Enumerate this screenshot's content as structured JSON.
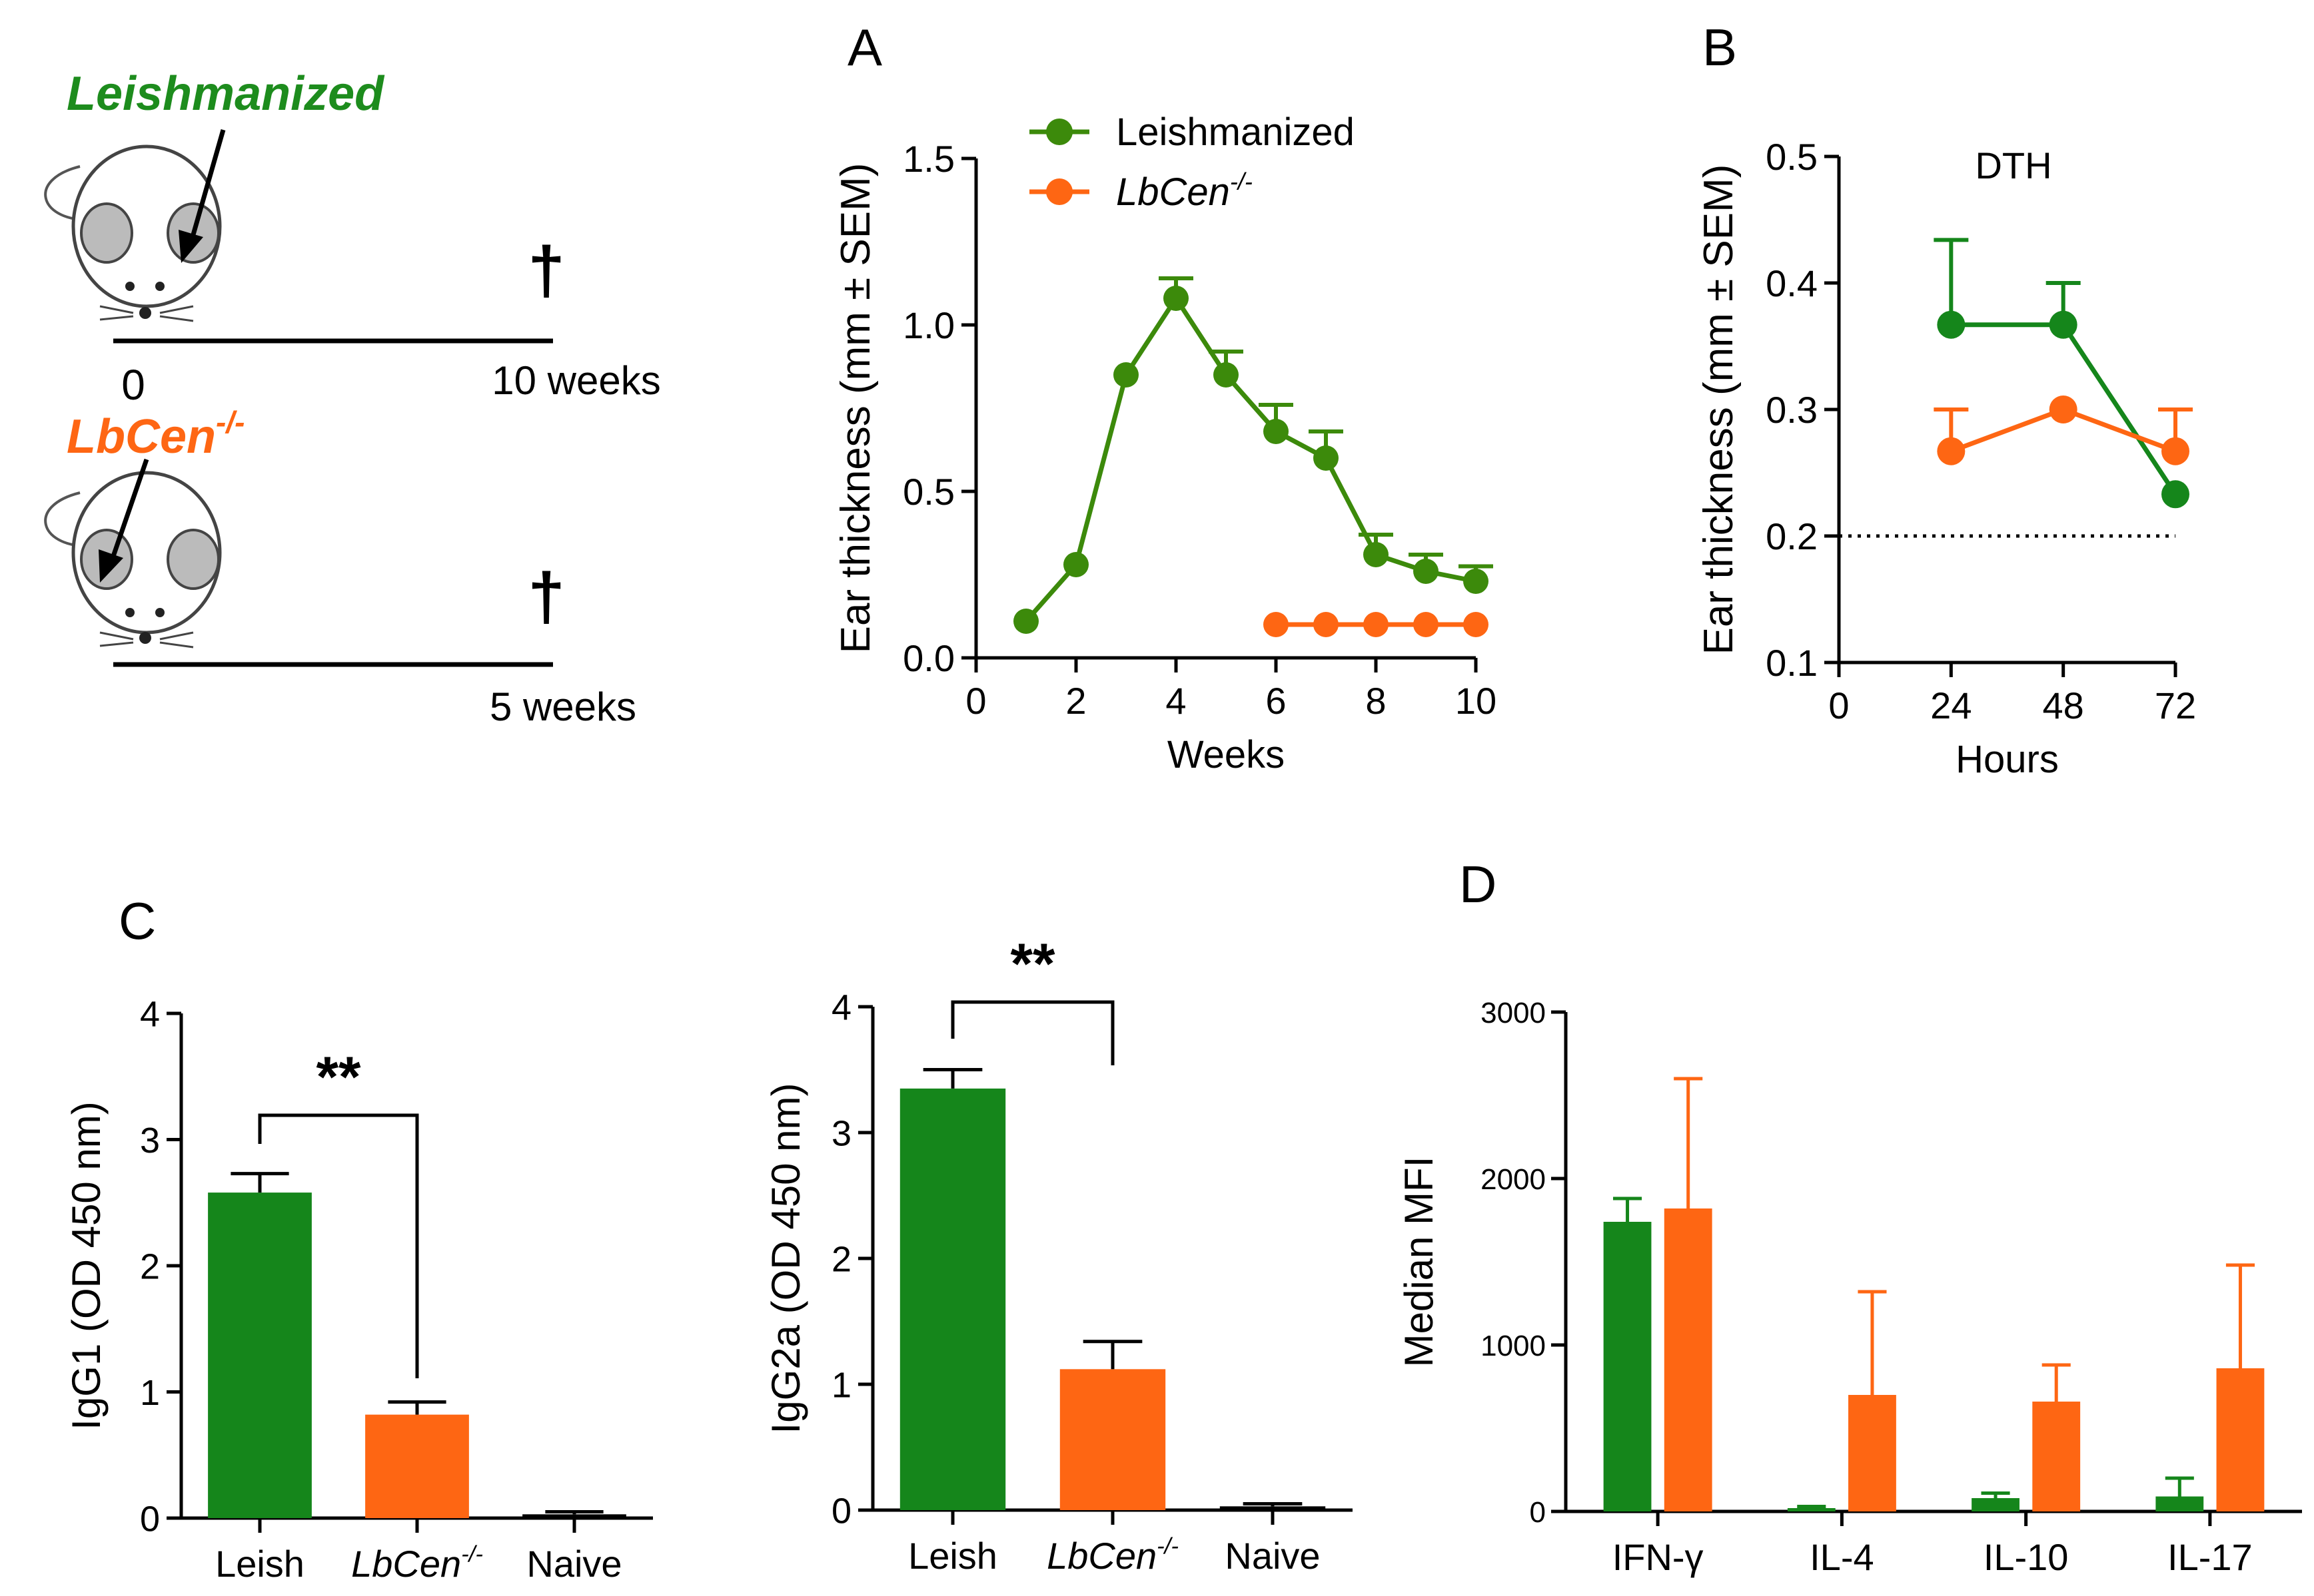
{
  "colors": {
    "green": "#3c8a0b",
    "green_dark": "#15861b",
    "orange": "#fe6613",
    "black": "#000000",
    "text_green": "#1d8c1d"
  },
  "schematic": {
    "leishmanized": {
      "label": "Leishmanized",
      "start": "0",
      "end": "10 weeks",
      "dagger": "†"
    },
    "lbcen": {
      "label_base": "LbCen",
      "label_sup": "-/-",
      "end": "5 weeks",
      "dagger": "†"
    }
  },
  "chart_data": [
    {
      "id": "A",
      "panel_label": "A",
      "type": "line",
      "title": "",
      "xlabel": "Weeks",
      "ylabel": "Ear thickness (mm ± SEM)",
      "xlim": [
        0,
        10
      ],
      "ylim": [
        0,
        1.5
      ],
      "xticks": [
        "0",
        "2",
        "4",
        "6",
        "8",
        "10"
      ],
      "yticks": [
        "0.0",
        "0.5",
        "1.0",
        "1.5"
      ],
      "legend": [
        {
          "name": "Leishmanized",
          "italic": false
        },
        {
          "name_base": "LbCen",
          "name_sup": "-/-",
          "italic": true
        }
      ],
      "series": [
        {
          "name": "Leishmanized",
          "color": "#3c8a0b",
          "x": [
            1,
            2,
            3,
            4,
            5,
            6,
            7,
            8,
            9,
            10
          ],
          "y": [
            0.11,
            0.28,
            0.85,
            1.08,
            0.85,
            0.68,
            0.6,
            0.31,
            0.26,
            0.23
          ],
          "err": [
            0,
            0,
            0,
            0.06,
            0.07,
            0.08,
            0.08,
            0.06,
            0.05,
            0.045
          ]
        },
        {
          "name": "LbCen-/-",
          "color": "#fe6613",
          "x": [
            6,
            7,
            8,
            9,
            10
          ],
          "y": [
            0.1,
            0.1,
            0.1,
            0.1,
            0.1
          ],
          "err": [
            0,
            0,
            0,
            0,
            0
          ]
        }
      ]
    },
    {
      "id": "B",
      "panel_label": "B",
      "type": "line",
      "title": "DTH",
      "xlabel": "Hours",
      "ylabel": "Ear thickness (mm ± SEM)",
      "xlim": [
        0,
        72
      ],
      "ylim": [
        0.1,
        0.5
      ],
      "xticks": [
        "0",
        "24",
        "48",
        "72"
      ],
      "yticks": [
        "0.1",
        "0.2",
        "0.3",
        "0.4",
        "0.5"
      ],
      "reference_line": 0.2,
      "series": [
        {
          "name": "Leishmanized",
          "color": "#15861b",
          "x": [
            24,
            48,
            72
          ],
          "y": [
            0.367,
            0.367,
            0.233
          ],
          "err": [
            0.067,
            0.033,
            0
          ]
        },
        {
          "name": "LbCen-/-",
          "color": "#fe6613",
          "x": [
            24,
            48,
            72
          ],
          "y": [
            0.267,
            0.3,
            0.267
          ],
          "err": [
            0.033,
            0,
            0.033
          ]
        }
      ]
    },
    {
      "id": "C1",
      "panel_label": "C",
      "type": "bar",
      "title": "",
      "xlabel": "",
      "ylabel": "IgG1 (OD 450 nm)",
      "ylim": [
        0,
        4
      ],
      "yticks": [
        "0",
        "1",
        "2",
        "3",
        "4"
      ],
      "categories": [
        "Leish",
        "LbCen-/-",
        "Naive"
      ],
      "values": [
        2.58,
        0.82,
        0.03
      ],
      "err": [
        0.15,
        0.1,
        0.02
      ],
      "colors": [
        "#15861b",
        "#fe6613",
        "#000000"
      ],
      "significance": {
        "from": 0,
        "to": 1,
        "label": "**"
      }
    },
    {
      "id": "C2",
      "panel_label": "",
      "type": "bar",
      "title": "",
      "xlabel": "",
      "ylabel": "IgG2a (OD 450 nm)",
      "ylim": [
        0,
        4
      ],
      "yticks": [
        "0",
        "1",
        "2",
        "3",
        "4"
      ],
      "categories": [
        "Leish",
        "LbCen-/-",
        "Naive"
      ],
      "values": [
        3.35,
        1.12,
        0.03
      ],
      "err": [
        0.15,
        0.22,
        0.02
      ],
      "colors": [
        "#15861b",
        "#fe6613",
        "#000000"
      ],
      "significance": {
        "from": 0,
        "to": 1,
        "label": "**"
      }
    },
    {
      "id": "D",
      "panel_label": "D",
      "type": "bar",
      "title": "",
      "xlabel": "",
      "ylabel": "Median MFI",
      "ylim": [
        0,
        3000
      ],
      "yticks": [
        "0",
        "1000",
        "2000",
        "3000"
      ],
      "categories": [
        "IFN-γ",
        "IL-4",
        "IL-10",
        "IL-17"
      ],
      "series": [
        {
          "name": "Leishmanized",
          "color": "#15861b",
          "values": [
            1740,
            20,
            80,
            90
          ],
          "err": [
            140,
            10,
            30,
            110
          ]
        },
        {
          "name": "LbCen-/-",
          "color": "#fe6613",
          "values": [
            1820,
            700,
            660,
            860
          ],
          "err": [
            780,
            620,
            220,
            620
          ]
        }
      ]
    }
  ]
}
